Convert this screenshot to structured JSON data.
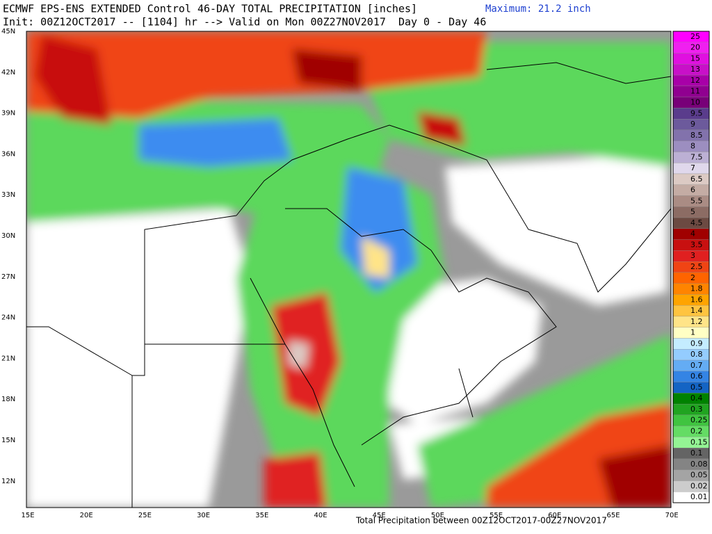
{
  "header": {
    "title": "ECMWF EPS-ENS EXTENDED Control 46-DAY TOTAL PRECIPITATION [inches]",
    "maximum": "Maximum: 21.2 inch",
    "subtitle": "Init: 00Z12OCT2017 -- [1104] hr --> Valid on Mon 00Z27NOV2017  Day 0 - Day 46"
  },
  "map": {
    "latitude_labels": [
      "45N",
      "42N",
      "39N",
      "36N",
      "33N",
      "30N",
      "27N",
      "24N",
      "21N",
      "18N",
      "15N",
      "12N"
    ],
    "longitude_labels": [
      "15E",
      "20E",
      "25E",
      "30E",
      "35E",
      "40E",
      "45E",
      "50E",
      "55E",
      "60E",
      "65E",
      "70E"
    ]
  },
  "colorbar": {
    "levels": [
      {
        "label": "25",
        "color": "#ff00ff"
      },
      {
        "label": "20",
        "color": "#f020f0"
      },
      {
        "label": "15",
        "color": "#e010e0"
      },
      {
        "label": "13",
        "color": "#c810c8"
      },
      {
        "label": "12",
        "color": "#a800a8"
      },
      {
        "label": "11",
        "color": "#900090"
      },
      {
        "label": "10",
        "color": "#780078"
      },
      {
        "label": "9.5",
        "color": "#5a3c8c"
      },
      {
        "label": "9",
        "color": "#6c5a9c"
      },
      {
        "label": "8.5",
        "color": "#8272ac"
      },
      {
        "label": "8",
        "color": "#9c8ec0"
      },
      {
        "label": "7.5",
        "color": "#bcb0d4"
      },
      {
        "label": "7",
        "color": "#e0d8ec"
      },
      {
        "label": "6.5",
        "color": "#dccac4"
      },
      {
        "label": "6",
        "color": "#c4aca4"
      },
      {
        "label": "5.5",
        "color": "#aa8c84"
      },
      {
        "label": "5",
        "color": "#8c6c64"
      },
      {
        "label": "4.5",
        "color": "#6c4a42"
      },
      {
        "label": "4",
        "color": "#a00000"
      },
      {
        "label": "3.5",
        "color": "#c81010"
      },
      {
        "label": "3",
        "color": "#e02020"
      },
      {
        "label": "2.5",
        "color": "#f04414"
      },
      {
        "label": "2",
        "color": "#ff6400"
      },
      {
        "label": "1.8",
        "color": "#ff8400"
      },
      {
        "label": "1.6",
        "color": "#ffa400"
      },
      {
        "label": "1.4",
        "color": "#ffc440"
      },
      {
        "label": "1.2",
        "color": "#ffe488"
      },
      {
        "label": "1",
        "color": "#ffffc4"
      },
      {
        "label": "0.9",
        "color": "#c4ecff"
      },
      {
        "label": "0.8",
        "color": "#94ccff"
      },
      {
        "label": "0.7",
        "color": "#64acf4"
      },
      {
        "label": "0.6",
        "color": "#3484e4"
      },
      {
        "label": "0.5",
        "color": "#1464c4"
      },
      {
        "label": "0.4",
        "color": "#008200"
      },
      {
        "label": "0.3",
        "color": "#20a420"
      },
      {
        "label": "0.25",
        "color": "#40c440"
      },
      {
        "label": "0.2",
        "color": "#64dc64"
      },
      {
        "label": "0.15",
        "color": "#94f494"
      },
      {
        "label": "0.1",
        "color": "#646464"
      },
      {
        "label": "0.08",
        "color": "#848484"
      },
      {
        "label": "0.05",
        "color": "#a4a4a4"
      },
      {
        "label": "0.02",
        "color": "#cccccc"
      },
      {
        "label": "0.01",
        "color": "#ffffff"
      }
    ]
  },
  "footer": "Total Precipitation between 00Z12OCT2017-00Z27NOV2017"
}
